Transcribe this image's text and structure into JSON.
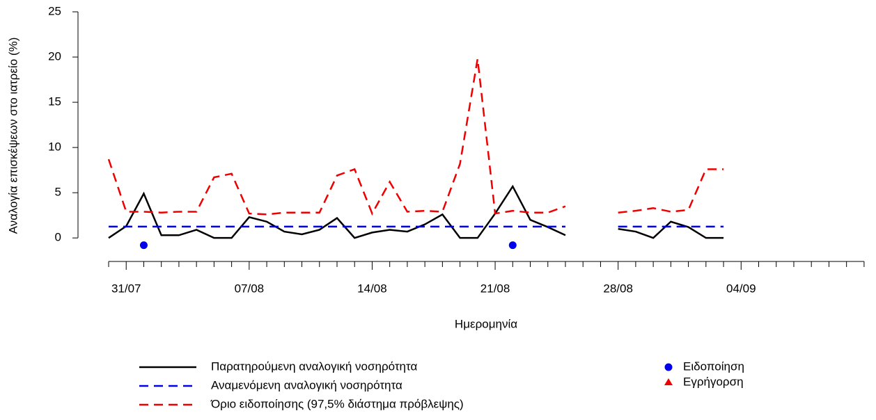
{
  "chart_data": {
    "type": "line",
    "y_label": "Αναλογία επισκέψεων στο ιατρείο (%)",
    "x_label": "Ημερομηνία",
    "categories": [
      null,
      "31/07",
      null,
      null,
      null,
      null,
      null,
      null,
      "07/08",
      null,
      null,
      null,
      null,
      null,
      null,
      "14/08",
      null,
      null,
      null,
      null,
      null,
      null,
      "21/08",
      null,
      null,
      null,
      null,
      null,
      null,
      "28/08",
      null,
      null,
      null,
      null,
      null,
      null,
      "04/09",
      null,
      null,
      null,
      null,
      null,
      null,
      null
    ],
    "ylim": [
      -2.6,
      25
    ],
    "yticks": [
      0,
      5,
      10,
      15,
      20,
      25
    ],
    "series": [
      {
        "name": "Παρατηρούμενη αναλογική νοσηρότητα",
        "color": "#000000",
        "dash": false,
        "marker": null,
        "values": [
          0,
          1.3,
          4.9,
          0.3,
          0.3,
          0.9,
          0,
          0,
          2.3,
          1.8,
          0.7,
          0.4,
          0.9,
          2.2,
          0,
          0.6,
          0.9,
          0.7,
          1.5,
          2.6,
          0,
          0,
          2.7,
          5.7,
          2.0,
          1.2,
          0.3,
          null,
          null,
          1.0,
          0.7,
          0,
          1.8,
          1.2,
          0,
          0,
          null,
          null,
          null,
          null,
          null,
          null,
          null,
          null
        ]
      },
      {
        "name": "Αναμενόμενη αναλογική νοσηρότητα",
        "color": "#0000ee",
        "dash": true,
        "marker": null,
        "values": [
          1.25,
          1.25,
          1.25,
          1.25,
          1.25,
          1.25,
          1.25,
          1.25,
          1.25,
          1.25,
          1.25,
          1.25,
          1.25,
          1.25,
          1.25,
          1.25,
          1.25,
          1.25,
          1.25,
          1.25,
          1.25,
          1.25,
          1.25,
          1.25,
          1.25,
          1.25,
          1.25,
          null,
          null,
          1.25,
          1.25,
          1.25,
          1.25,
          1.25,
          1.25,
          1.25,
          null,
          null,
          null,
          null,
          null,
          null,
          null,
          null
        ]
      },
      {
        "name": "Όριο ειδοποίησης (97,5% διάστημα πρόβλεψης)",
        "color": "#ee0000",
        "dash": true,
        "marker": null,
        "values": [
          8.7,
          2.9,
          2.9,
          2.8,
          2.9,
          2.9,
          6.7,
          7.1,
          2.7,
          2.6,
          2.8,
          2.8,
          2.8,
          6.9,
          7.6,
          2.7,
          6.2,
          2.9,
          3.0,
          2.9,
          8.2,
          19.8,
          2.7,
          3.0,
          2.8,
          2.8,
          3.5,
          null,
          null,
          2.8,
          3.0,
          3.3,
          2.9,
          3.1,
          7.6,
          7.6,
          null,
          null,
          null,
          null,
          null,
          null,
          null,
          null
        ]
      },
      {
        "name": "Ειδοποίηση",
        "color": "#0000ee",
        "dash": false,
        "marker": "circle",
        "values": [
          null,
          null,
          -0.8,
          null,
          null,
          null,
          null,
          null,
          null,
          null,
          null,
          null,
          null,
          null,
          null,
          null,
          null,
          null,
          null,
          null,
          null,
          null,
          null,
          -0.8,
          null,
          null,
          null,
          null,
          null,
          null,
          null,
          null,
          null,
          null,
          null,
          null,
          null,
          null,
          null,
          null,
          null,
          null,
          null,
          null
        ]
      },
      {
        "name": "Εγρήγορση",
        "color": "#ee0000",
        "dash": false,
        "marker": "triangle",
        "values": [
          null,
          null,
          null,
          null,
          null,
          null,
          null,
          null,
          null,
          null,
          null,
          null,
          null,
          null,
          null,
          null,
          null,
          null,
          null,
          null,
          null,
          null,
          null,
          null,
          null,
          null,
          null,
          null,
          null,
          null,
          null,
          null,
          null,
          null,
          null,
          null,
          null,
          null,
          null,
          null,
          null,
          null,
          null,
          null
        ]
      }
    ]
  }
}
